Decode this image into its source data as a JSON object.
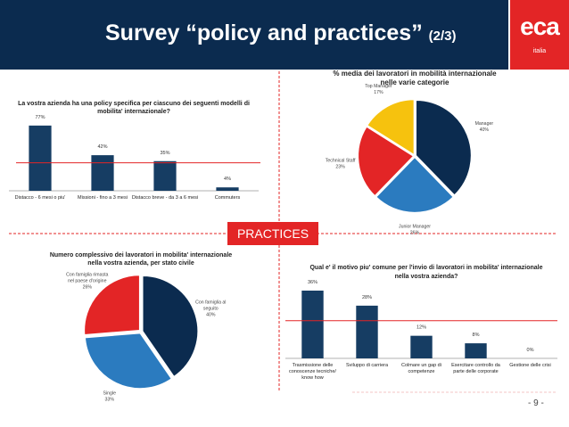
{
  "header": {
    "title": "Survey “policy and practices”",
    "subtitle": "(2/3)"
  },
  "logo": {
    "text": "eca",
    "subtext": "italia"
  },
  "badge": {
    "label": "PRACTICES"
  },
  "footer": {
    "page_number": "- 9 -"
  },
  "colors": {
    "navy": "#0b2b4f",
    "red": "#e32526",
    "blue": "#2b7bbf",
    "yellow": "#f6c20e",
    "darkbar": "#163d63",
    "line": "#e32526",
    "dashed": "#f3c4c4"
  },
  "chart_data": [
    {
      "id": "policy",
      "type": "bar",
      "title_lines": [
        "La vostra azienda ha una policy specifica per ciascuno dei seguenti modelli di",
        "mobilita' internazionale?"
      ],
      "categories": [
        "Distacco - 6 mesi o piu'",
        "Missioni - fino a 3 mesi",
        "Distacco breve - da 3 a 6 mesi",
        "Commuters"
      ],
      "values": [
        77,
        42,
        35,
        4
      ],
      "value_labels": [
        "77%",
        "42%",
        "35%",
        "4%"
      ],
      "ylim": [
        0,
        100
      ],
      "reference_line": 33
    },
    {
      "id": "categories",
      "type": "pie",
      "title_lines": [
        "% media dei lavoratori in mobilità internazionale",
        "nelle varie categorie"
      ],
      "slices": [
        {
          "name": "Manager",
          "label_lines": [
            "Manager",
            "40%"
          ],
          "value": 40,
          "color": "#0b2b4f"
        },
        {
          "name": "Junior Manager",
          "label_lines": [
            "Junior Manager",
            "26%"
          ],
          "value": 26,
          "color": "#2b7bbf"
        },
        {
          "name": "Technical Staff",
          "label_lines": [
            "Technical Staff",
            "23%"
          ],
          "value": 23,
          "color": "#e32526"
        },
        {
          "name": "Top Manager",
          "label_lines": [
            "Top Manager",
            "17%"
          ],
          "value": 17,
          "color": "#f6c20e"
        }
      ]
    },
    {
      "id": "households",
      "type": "pie",
      "title_lines": [
        "Numero complessivo dei lavoratori in mobilita' internazionale",
        "nella vostra azienda, per stato civile"
      ],
      "slices": [
        {
          "name": "Con famiglia al seguito",
          "label_lines": [
            "Con famiglia al",
            "seguito",
            "40%"
          ],
          "value": 40,
          "color": "#0b2b4f"
        },
        {
          "name": "Single",
          "label_lines": [
            "Single",
            "33%"
          ],
          "value": 33,
          "color": "#2b7bbf"
        },
        {
          "name": "Con famiglia rimasta nel paese d'origine",
          "label_lines": [
            "Con famiglia rimasta",
            "nel paese d'origine",
            "26%"
          ],
          "value": 26,
          "color": "#e32526"
        }
      ]
    },
    {
      "id": "reasons",
      "type": "bar",
      "title_lines": [
        "Qual e' il motivo piu' comune per l'invio di lavoratori in mobilita' internazionale",
        "nella vostra azienda?"
      ],
      "categories": [
        [
          "Trasmissione delle",
          "conoscenze tecniche/",
          "know how"
        ],
        [
          "Sviluppo di carriera"
        ],
        [
          "Colmare un gap di",
          "competenze"
        ],
        [
          "Esercitare controllo da",
          "parte delle corporate"
        ],
        [
          "Gestione delle crisi"
        ]
      ],
      "values": [
        36,
        28,
        12,
        8,
        0
      ],
      "value_labels": [
        "36%",
        "28%",
        "12%",
        "8%",
        "0%"
      ],
      "ylim": [
        0,
        45
      ],
      "reference_line": 20
    }
  ]
}
